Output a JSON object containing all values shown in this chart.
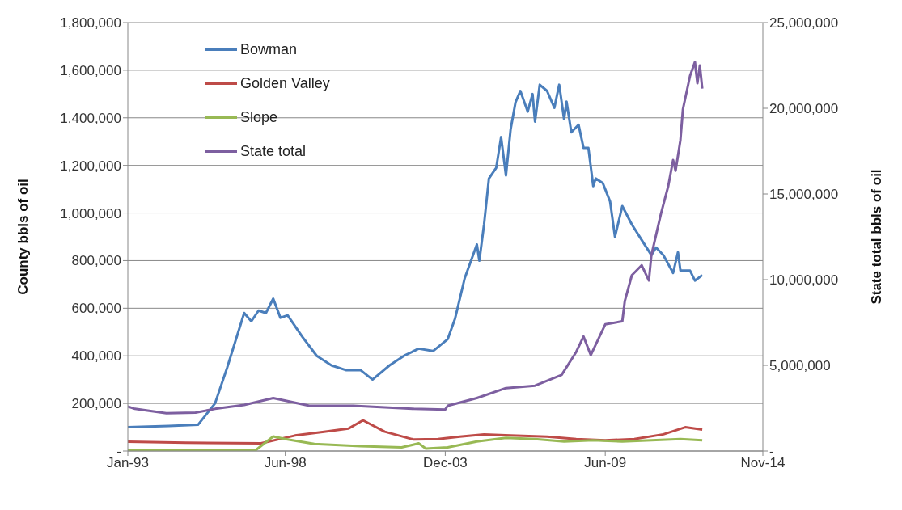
{
  "chart_data": {
    "type": "line",
    "xlabel": null,
    "ylabel": "County bbls of oil",
    "y2label": "State total bbls of oil",
    "xlim": [
      "1993-01",
      "2014-11"
    ],
    "xticks": [
      {
        "value": "1993-01",
        "label": "Jan-93"
      },
      {
        "value": "1998-06",
        "label": "Jun-98"
      },
      {
        "value": "2003-12",
        "label": "Dec-03"
      },
      {
        "value": "2009-06",
        "label": "Jun-09"
      },
      {
        "value": "2014-11",
        "label": "Nov-14"
      }
    ],
    "ylim": [
      0,
      1800000
    ],
    "yticks": [
      {
        "value": 0,
        "label": "-"
      },
      {
        "value": 200000,
        "label": "200,000"
      },
      {
        "value": 400000,
        "label": "400,000"
      },
      {
        "value": 600000,
        "label": "600,000"
      },
      {
        "value": 800000,
        "label": "800,000"
      },
      {
        "value": 1000000,
        "label": "1,000,000"
      },
      {
        "value": 1200000,
        "label": "1,200,000"
      },
      {
        "value": 1400000,
        "label": "1,400,000"
      },
      {
        "value": 1600000,
        "label": "1,600,000"
      },
      {
        "value": 1800000,
        "label": "1,800,000"
      }
    ],
    "y2lim": [
      0,
      25000000
    ],
    "y2ticks": [
      {
        "value": 0,
        "label": "-"
      },
      {
        "value": 5000000,
        "label": "5,000,000"
      },
      {
        "value": 10000000,
        "label": "10,000,000"
      },
      {
        "value": 15000000,
        "label": "15,000,000"
      },
      {
        "value": 20000000,
        "label": "20,000,000"
      },
      {
        "value": 25000000,
        "label": "25,000,000"
      }
    ],
    "grid": "y",
    "legend": "top left",
    "marker": "none",
    "line_style": "solid",
    "series": [
      {
        "name": "Bowman",
        "color": "#4a7ebb",
        "x": [
          "1993-01",
          "1994-06",
          "1995-06",
          "1996-01",
          "1996-06",
          "1997-01",
          "1997-04",
          "1997-07",
          "1997-10",
          "1998-01",
          "1998-04",
          "1998-07",
          "1999-01",
          "1999-07",
          "2000-01",
          "2000-07",
          "2001-01",
          "2001-06",
          "2002-01",
          "2002-07",
          "2003-01",
          "2003-07",
          "2004-01",
          "2004-04",
          "2004-08",
          "2005-01",
          "2005-02",
          "2005-04",
          "2005-06",
          "2005-09",
          "2005-11",
          "2006-01",
          "2006-03",
          "2006-05",
          "2006-07",
          "2006-10",
          "2006-12",
          "2007-01",
          "2007-03",
          "2007-06",
          "2007-09",
          "2007-11",
          "2008-01",
          "2008-02",
          "2008-04",
          "2008-07",
          "2008-09",
          "2008-11",
          "2009-01",
          "2009-02",
          "2009-05",
          "2009-08",
          "2009-10",
          "2010-01",
          "2010-05",
          "2010-09",
          "2011-01",
          "2011-03",
          "2011-06",
          "2011-10",
          "2011-12",
          "2012-01",
          "2012-05",
          "2012-07",
          "2012-10"
        ],
        "values": [
          100000,
          105000,
          110000,
          200000,
          350000,
          580000,
          545000,
          590000,
          580000,
          640000,
          560000,
          570000,
          480000,
          400000,
          360000,
          340000,
          340000,
          300000,
          360000,
          400000,
          430000,
          420000,
          470000,
          555000,
          726000,
          868000,
          800000,
          952000,
          1145000,
          1190000,
          1319000,
          1158000,
          1352000,
          1465000,
          1513000,
          1426000,
          1500000,
          1384000,
          1539000,
          1513000,
          1442000,
          1539000,
          1394000,
          1468000,
          1339000,
          1371000,
          1274000,
          1274000,
          1113000,
          1145000,
          1126000,
          1048000,
          900000,
          1029000,
          952000,
          887000,
          823000,
          855000,
          823000,
          748000,
          835000,
          758000,
          758000,
          716000,
          739000
        ]
      },
      {
        "name": "Golden Valley",
        "color": "#be4b48",
        "x": [
          "1993-01",
          "1995-01",
          "1997-08",
          "1998-10",
          "1999-10",
          "2000-08",
          "2001-02",
          "2001-11",
          "2002-11",
          "2003-09",
          "2004-06",
          "2005-04",
          "2006-03",
          "2007-06",
          "2008-06",
          "2009-06",
          "2010-06",
          "2011-06",
          "2012-03",
          "2012-10"
        ],
        "values": [
          39000,
          35000,
          32000,
          65000,
          81000,
          94000,
          129000,
          81000,
          48000,
          50000,
          60000,
          70000,
          65000,
          60000,
          50000,
          45000,
          50000,
          70000,
          100000,
          90000
        ]
      },
      {
        "name": "Slope",
        "color": "#98b954",
        "x": [
          "1993-01",
          "1997-06",
          "1998-01",
          "1998-06",
          "1999-06",
          "2001-01",
          "2002-06",
          "2003-01",
          "2003-04",
          "2004-01",
          "2005-01",
          "2006-01",
          "2007-01",
          "2008-01",
          "2009-01",
          "2010-01",
          "2011-01",
          "2012-01",
          "2012-10"
        ],
        "values": [
          5000,
          5000,
          61000,
          50000,
          30000,
          20000,
          15000,
          32000,
          10000,
          15000,
          40000,
          55000,
          50000,
          40000,
          45000,
          40000,
          45000,
          50000,
          45000
        ]
      },
      {
        "name": "State total",
        "color": "#7d5fa0",
        "axis": "y2",
        "x": [
          "1993-01",
          "1993-04",
          "1994-05",
          "1995-05",
          "1996-01",
          "1997-01",
          "1998-01",
          "1999-04",
          "2000-10",
          "2002-11",
          "2003-12",
          "2004-01",
          "2005-01",
          "2006-01",
          "2007-01",
          "2007-12",
          "2008-06",
          "2008-09",
          "2008-12",
          "2009-06",
          "2010-01",
          "2010-02",
          "2010-05",
          "2010-09",
          "2010-12",
          "2011-01",
          "2011-05",
          "2011-08",
          "2011-10",
          "2011-11",
          "2012-01",
          "2012-02",
          "2012-05",
          "2012-07",
          "2012-08",
          "2012-09",
          "2012-10"
        ],
        "values": [
          2600000,
          2460000,
          2200000,
          2240000,
          2460000,
          2690000,
          3090000,
          2640000,
          2640000,
          2460000,
          2420000,
          2640000,
          3090000,
          3670000,
          3810000,
          4440000,
          5780000,
          6680000,
          5600000,
          7390000,
          7570000,
          8740000,
          10260000,
          10840000,
          9950000,
          11420000,
          13840000,
          15460000,
          16980000,
          16350000,
          18150000,
          19940000,
          21900000,
          22700000,
          21460000,
          22500000,
          21150000
        ]
      }
    ]
  }
}
